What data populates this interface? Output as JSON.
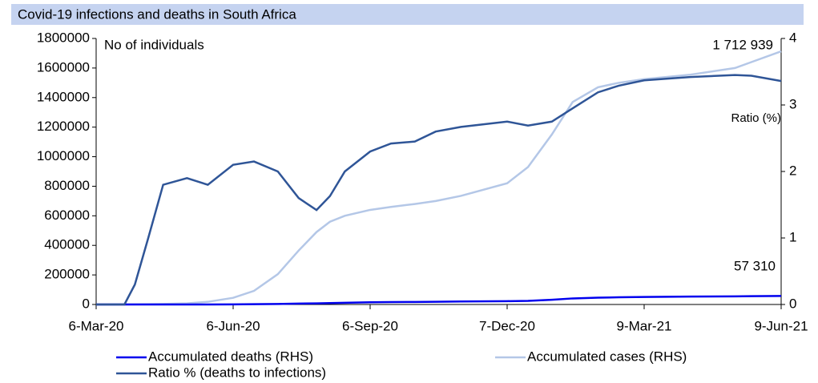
{
  "chart_data": {
    "type": "line",
    "title": "Covid-19 infections and deaths in South Africa",
    "annotations": [
      "No of individuals",
      "Ratio (%)",
      "1 712 939",
      "57 310"
    ],
    "x": [
      "2020-03-06",
      "2020-03-25",
      "2020-04-01",
      "2020-04-10",
      "2020-04-20",
      "2020-05-06",
      "2020-05-20",
      "2020-06-06",
      "2020-06-20",
      "2020-07-06",
      "2020-07-20",
      "2020-08-01",
      "2020-08-10",
      "2020-08-20",
      "2020-09-06",
      "2020-09-20",
      "2020-10-06",
      "2020-10-20",
      "2020-11-06",
      "2020-12-07",
      "2020-12-21",
      "2021-01-06",
      "2021-01-20",
      "2021-02-06",
      "2021-02-20",
      "2021-03-09",
      "2021-04-09",
      "2021-05-09",
      "2021-05-20",
      "2021-06-09"
    ],
    "xlim": [
      "2020-03-06",
      "2021-06-09"
    ],
    "xticks": [
      {
        "value": "2020-03-06",
        "label": "6-Mar-20"
      },
      {
        "value": "2020-06-06",
        "label": "6-Jun-20"
      },
      {
        "value": "2020-09-06",
        "label": "6-Sep-20"
      },
      {
        "value": "2020-12-07",
        "label": "7-Dec-20"
      },
      {
        "value": "2021-03-09",
        "label": "9-Mar-21"
      },
      {
        "value": "2021-06-09",
        "label": "9-Jun-21"
      }
    ],
    "ylim": [
      0,
      1800000
    ],
    "yticks": [
      0,
      200000,
      400000,
      600000,
      800000,
      1000000,
      1200000,
      1400000,
      1600000,
      1800000
    ],
    "y2lim": [
      0,
      4
    ],
    "y2ticks": [
      0,
      1,
      2,
      3,
      4
    ],
    "series": [
      {
        "name": "Accumulated deaths (RHS)",
        "color": "#0000ee",
        "values": [
          0,
          0,
          0,
          20,
          50,
          120,
          340,
          1000,
          1900,
          3300,
          5900,
          7500,
          9600,
          11700,
          15000,
          16000,
          17000,
          18000,
          20000,
          22500,
          24500,
          32000,
          41000,
          46000,
          48500,
          51000,
          53500,
          55000,
          56000,
          57310
        ]
      },
      {
        "name": "Accumulated cases  (RHS)",
        "color": "#b4c7e7",
        "values": [
          0,
          700,
          1400,
          2000,
          3300,
          7600,
          18000,
          45000,
          92000,
          205000,
          365000,
          490000,
          560000,
          600000,
          640000,
          660000,
          680000,
          700000,
          735000,
          820000,
          930000,
          1150000,
          1370000,
          1470000,
          1500000,
          1525000,
          1555000,
          1600000,
          1640000,
          1712939
        ]
      },
      {
        "name": "Ratio % (deaths to infections)",
        "color": "#2f5597",
        "axis": "y2",
        "values": [
          0,
          0,
          0.3,
          1.0,
          1.8,
          1.9,
          1.8,
          2.1,
          2.15,
          2.0,
          1.6,
          1.42,
          1.63,
          2.0,
          2.3,
          2.42,
          2.45,
          2.6,
          2.67,
          2.75,
          2.69,
          2.75,
          2.95,
          3.19,
          3.29,
          3.37,
          3.42,
          3.45,
          3.44,
          3.36
        ]
      }
    ]
  }
}
